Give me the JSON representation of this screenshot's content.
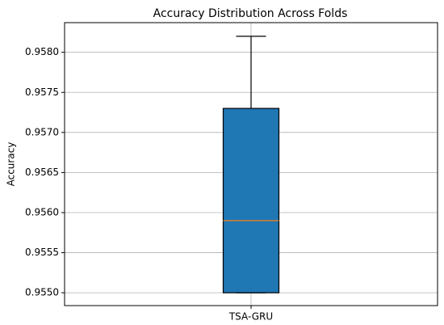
{
  "chart_data": {
    "type": "box",
    "title": "Accuracy Distribution Across Folds",
    "y_label": "Accuracy",
    "categories": [
      "TSA-GRU"
    ],
    "boxes": [
      {
        "min": 0.955,
        "q1": 0.955,
        "median": 0.9559,
        "q3": 0.9573,
        "max": 0.9582
      }
    ],
    "color": "#1f77b4",
    "median_color": "#ff7f0e",
    "ylim": [
      0.95484,
      0.95837
    ],
    "yticks": [
      {
        "value": 0.955,
        "label": "0.9550"
      },
      {
        "value": 0.9555,
        "label": "0.9555"
      },
      {
        "value": 0.956,
        "label": "0.9560"
      },
      {
        "value": 0.9565,
        "label": "0.9565"
      },
      {
        "value": 0.957,
        "label": "0.9570"
      },
      {
        "value": 0.9575,
        "label": "0.9575"
      },
      {
        "value": 0.958,
        "label": "0.9580"
      }
    ],
    "grid": true
  }
}
